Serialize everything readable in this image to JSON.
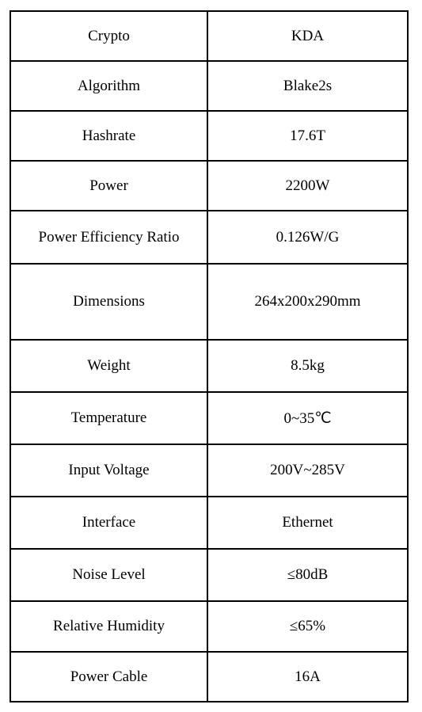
{
  "table": {
    "rows": [
      [
        "Crypto",
        "KDA"
      ],
      [
        "Algorithm",
        "Blake2s"
      ],
      [
        "Hashrate",
        "17.6T"
      ],
      [
        "Power",
        "2200W"
      ],
      [
        "Power Efficiency Ratio",
        "0.126W/G"
      ],
      [
        "Dimensions",
        "264x200x290mm"
      ],
      [
        "Weight",
        "8.5kg"
      ],
      [
        "Temperature",
        "0~35℃"
      ],
      [
        "Input Voltage",
        "200V~285V"
      ],
      [
        "Interface",
        "Ethernet"
      ],
      [
        "Noise Level",
        "≤80dB"
      ],
      [
        "Relative Humidity",
        "≤65%"
      ],
      [
        "Power Cable",
        "16A"
      ]
    ]
  }
}
